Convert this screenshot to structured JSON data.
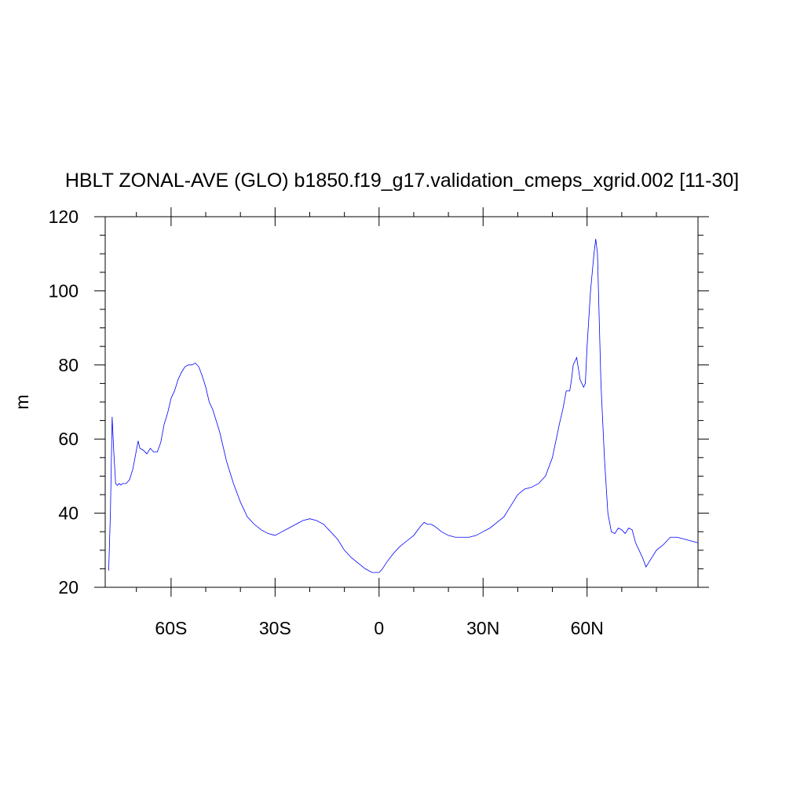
{
  "chart_data": {
    "type": "line",
    "title": "HBLT ZONAL-AVE (GLO) b1850.f19_g17.validation_cmeps_xgrid.002 [11-30]",
    "xlabel": "",
    "ylabel": "m",
    "xlim": [
      -79,
      92
    ],
    "ylim": [
      20,
      120
    ],
    "x_ticks": [
      {
        "value": -60,
        "label": "60S"
      },
      {
        "value": -30,
        "label": "30S"
      },
      {
        "value": 0,
        "label": "0"
      },
      {
        "value": 30,
        "label": "30N"
      },
      {
        "value": 60,
        "label": "60N"
      }
    ],
    "y_ticks": [
      {
        "value": 20,
        "label": "20"
      },
      {
        "value": 40,
        "label": "40"
      },
      {
        "value": 60,
        "label": "60"
      },
      {
        "value": 80,
        "label": "80"
      },
      {
        "value": 100,
        "label": "100"
      },
      {
        "value": 120,
        "label": "120"
      }
    ],
    "grid": false,
    "line_color": "#0000ff",
    "series": [
      {
        "x": [
          -78,
          -77.5,
          -77,
          -76.5,
          -76,
          -75.5,
          -75,
          -74.5,
          -74,
          -73,
          -72,
          -71,
          -70,
          -69.5,
          -69,
          -68,
          -67,
          -66,
          -65,
          -64,
          -63,
          -62,
          -61,
          -60,
          -59,
          -58,
          -57,
          -56,
          -55,
          -54,
          -53,
          -52,
          -51,
          -50,
          -49,
          -48,
          -47,
          -46,
          -45,
          -44,
          -42,
          -40,
          -38,
          -36,
          -34,
          -32,
          -30,
          -28,
          -26,
          -24,
          -22,
          -20,
          -18,
          -16,
          -14,
          -12,
          -10,
          -8,
          -6,
          -4,
          -2,
          -1,
          0,
          1,
          2,
          4,
          6,
          8,
          10,
          12,
          13,
          14,
          15,
          16,
          18,
          20,
          22,
          24,
          26,
          28,
          30,
          32,
          34,
          36,
          38,
          40,
          42,
          44,
          46,
          48,
          50,
          52,
          53,
          54,
          55,
          55.5,
          56,
          57,
          58,
          59,
          59.5,
          60,
          61,
          62,
          62.5,
          63,
          64,
          65,
          66,
          67,
          68,
          69,
          70,
          71,
          72,
          73,
          74,
          75,
          76,
          77,
          78,
          80,
          82,
          84,
          86,
          88,
          90,
          92
        ],
        "y": [
          24.5,
          40,
          66,
          56,
          48,
          47.5,
          48,
          47.6,
          48,
          48,
          49,
          52,
          57,
          59.5,
          57.5,
          57,
          56,
          57.5,
          56.5,
          56.5,
          59,
          64,
          67,
          71,
          73,
          76,
          78,
          79.5,
          80,
          80,
          80.5,
          79.5,
          77,
          74,
          70,
          68,
          65,
          62,
          58,
          54,
          48,
          43,
          39,
          37,
          35.5,
          34.5,
          34,
          35,
          36,
          37,
          38,
          38.5,
          38,
          37,
          35,
          33,
          30,
          28,
          26.5,
          25,
          24,
          24,
          24,
          25,
          26.5,
          29,
          31,
          32.5,
          34,
          36.5,
          37.5,
          37,
          37,
          36.5,
          35,
          34,
          33.5,
          33.5,
          33.5,
          34,
          35,
          36,
          37.5,
          39,
          42,
          45,
          46.5,
          47,
          48,
          50,
          55,
          64,
          68,
          73,
          73,
          76,
          80,
          82,
          76,
          74,
          75,
          85,
          100,
          110,
          114,
          110,
          75,
          55,
          40,
          35,
          34.5,
          36,
          35.5,
          34.5,
          36,
          35.5,
          32,
          30,
          28,
          25.5,
          27,
          30,
          31.5,
          33.5,
          33.5,
          33,
          32.5,
          32
        ]
      }
    ]
  }
}
